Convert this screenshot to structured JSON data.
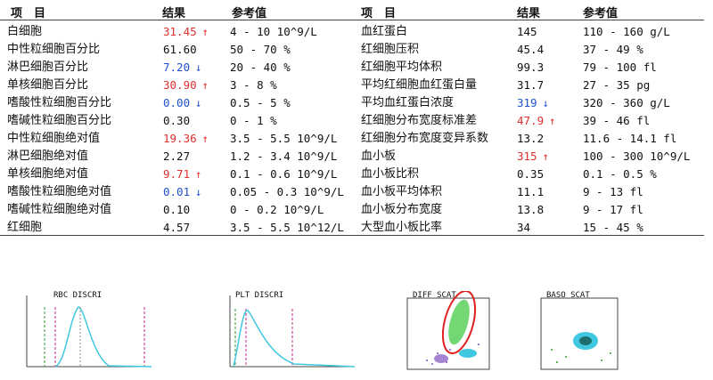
{
  "headers": {
    "left": {
      "item": "项　目",
      "result": "结果",
      "ref": "参考值"
    },
    "right": {
      "item": "项　目",
      "result": "结果",
      "ref": "参考值"
    }
  },
  "left_rows": [
    {
      "name": "白细胞",
      "value": "31.45",
      "flag": "up",
      "ref": "4 - 10 10^9/L"
    },
    {
      "name": "中性粒细胞百分比",
      "value": "61.60",
      "flag": "",
      "ref": "50 - 70 %"
    },
    {
      "name": "淋巴细胞百分比",
      "value": "7.20",
      "flag": "down",
      "ref": "20 - 40 %"
    },
    {
      "name": "单核细胞百分比",
      "value": "30.90",
      "flag": "up",
      "ref": "3 - 8 %"
    },
    {
      "name": "嗜酸性粒细胞百分比",
      "value": "0.00",
      "flag": "down",
      "ref": "0.5 - 5 %"
    },
    {
      "name": "嗜碱性粒细胞百分比",
      "value": "0.30",
      "flag": "",
      "ref": "0 - 1 %"
    },
    {
      "name": "中性粒细胞绝对值",
      "value": "19.36",
      "flag": "up",
      "ref": "3.5 - 5.5 10^9/L"
    },
    {
      "name": "淋巴细胞绝对值",
      "value": "2.27",
      "flag": "",
      "ref": "1.2 - 3.4 10^9/L"
    },
    {
      "name": "单核细胞绝对值",
      "value": "9.71",
      "flag": "up",
      "ref": "0.1 - 0.6 10^9/L"
    },
    {
      "name": "嗜酸性粒细胞绝对值",
      "value": "0.01",
      "flag": "down",
      "ref": "0.05 - 0.3 10^9/L"
    },
    {
      "name": "嗜碱性粒细胞绝对值",
      "value": "0.10",
      "flag": "",
      "ref": "0 - 0.2 10^9/L"
    },
    {
      "name": "红细胞",
      "value": "4.57",
      "flag": "",
      "ref": "3.5 - 5.5 10^12/L"
    }
  ],
  "right_rows": [
    {
      "name": "血红蛋白",
      "value": "145",
      "flag": "",
      "ref": "110 - 160 g/L"
    },
    {
      "name": "红细胞压积",
      "value": "45.4",
      "flag": "",
      "ref": "37 - 49 %"
    },
    {
      "name": "红细胞平均体积",
      "value": "99.3",
      "flag": "",
      "ref": "79 - 100 fl"
    },
    {
      "name": "平均红细胞血红蛋白量",
      "value": "31.7",
      "flag": "",
      "ref": "27 - 35 pg"
    },
    {
      "name": "平均血红蛋白浓度",
      "value": "319",
      "flag": "down",
      "ref": "320 - 360 g/L"
    },
    {
      "name": "红细胞分布宽度标准差",
      "value": "47.9",
      "flag": "up",
      "ref": "39 - 46 fl"
    },
    {
      "name": "红细胞分布宽度变异系数",
      "value": "13.2",
      "flag": "",
      "ref": "11.6 - 14.1 fl"
    },
    {
      "name": "血小板",
      "value": "315",
      "flag": "up",
      "ref": "100 - 300 10^9/L"
    },
    {
      "name": "血小板比积",
      "value": "0.35",
      "flag": "",
      "ref": "0.1 - 0.5 %"
    },
    {
      "name": "血小板平均体积",
      "value": "11.1",
      "flag": "",
      "ref": "9 - 13 fl"
    },
    {
      "name": "血小板分布宽度",
      "value": "13.8",
      "flag": "",
      "ref": "9 - 17 fl"
    },
    {
      "name": "大型血小板比率",
      "value": "34",
      "flag": "",
      "ref": "15 - 45 %"
    }
  ],
  "graphs": [
    {
      "label": "RBC DISCRI"
    },
    {
      "label": "PLT DISCRI"
    },
    {
      "label": "DIFF SCAT"
    },
    {
      "label": "BASO SCAT"
    }
  ],
  "colors": {
    "up": "#e03030",
    "down": "#2050d0",
    "curve": "#40c8e0",
    "highlight_ring": "#e02020"
  },
  "arrows": {
    "up": "↑",
    "down": "↓"
  }
}
